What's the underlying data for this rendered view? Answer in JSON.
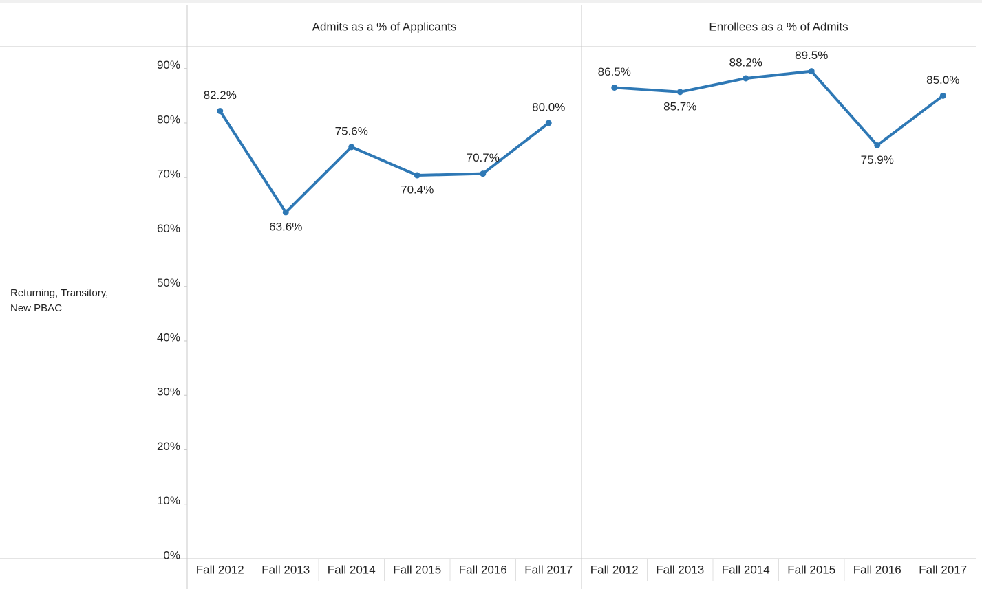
{
  "row_label": [
    "Returning, Transitory,",
    "New PBAC"
  ],
  "chart_data": [
    {
      "type": "line",
      "title": "Admits as a % of Applicants",
      "categories": [
        "Fall 2012",
        "Fall 2013",
        "Fall 2014",
        "Fall 2015",
        "Fall 2016",
        "Fall 2017"
      ],
      "values": [
        82.2,
        63.6,
        75.6,
        70.4,
        70.7,
        80.0
      ],
      "value_labels": [
        "82.2%",
        "63.6%",
        "75.6%",
        "70.4%",
        "70.7%",
        "80.0%"
      ],
      "color": "#2e78b5",
      "ylim": [
        0,
        94
      ],
      "yticks": [
        {
          "value": 0,
          "label": "0%"
        },
        {
          "value": 10,
          "label": "10%"
        },
        {
          "value": 20,
          "label": "20%"
        },
        {
          "value": 30,
          "label": "30%"
        },
        {
          "value": 40,
          "label": "40%"
        },
        {
          "value": 50,
          "label": "50%"
        },
        {
          "value": 60,
          "label": "60%"
        },
        {
          "value": 70,
          "label": "70%"
        },
        {
          "value": 80,
          "label": "80%"
        },
        {
          "value": 90,
          "label": "90%"
        }
      ]
    },
    {
      "type": "line",
      "title": "Enrollees as a % of Admits",
      "categories": [
        "Fall 2012",
        "Fall 2013",
        "Fall 2014",
        "Fall 2015",
        "Fall 2016",
        "Fall 2017"
      ],
      "values": [
        86.5,
        85.7,
        88.2,
        89.5,
        75.9,
        85.0
      ],
      "value_labels": [
        "86.5%",
        "85.7%",
        "88.2%",
        "89.5%",
        "75.9%",
        "85.0%"
      ],
      "color": "#2e78b5",
      "ylim": [
        0,
        94
      ]
    }
  ]
}
